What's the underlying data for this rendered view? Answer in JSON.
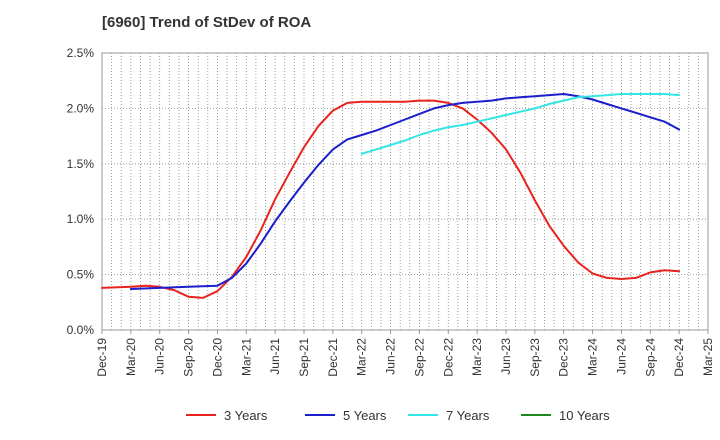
{
  "chart_data": {
    "type": "line",
    "title": "[6960]  Trend of StDev of ROA",
    "xlabel": "",
    "ylabel": "",
    "ylim": [
      0,
      2.5
    ],
    "y_ticks": [
      "0.0%",
      "0.5%",
      "1.0%",
      "1.5%",
      "2.0%",
      "2.5%"
    ],
    "y_tick_values": [
      0,
      0.5,
      1.0,
      1.5,
      2.0,
      2.5
    ],
    "x_ticks": [
      "Dec-19",
      "Mar-20",
      "Jun-20",
      "Sep-20",
      "Dec-20",
      "Mar-21",
      "Jun-21",
      "Sep-21",
      "Dec-21",
      "Mar-22",
      "Jun-22",
      "Sep-22",
      "Dec-22",
      "Mar-23",
      "Jun-23",
      "Sep-23",
      "Dec-23",
      "Mar-24",
      "Jun-24",
      "Sep-24",
      "Dec-24",
      "Mar-25"
    ],
    "grid": true,
    "legend_position": "bottom",
    "series": [
      {
        "name": "3 Years",
        "color": "#e8231e",
        "points": [
          [
            0,
            0.38
          ],
          [
            1,
            0.39
          ],
          [
            1.5,
            0.4
          ],
          [
            2,
            0.39
          ],
          [
            2.5,
            0.36
          ],
          [
            3,
            0.3
          ],
          [
            3.5,
            0.29
          ],
          [
            4,
            0.35
          ],
          [
            4.5,
            0.48
          ],
          [
            5,
            0.66
          ],
          [
            5.5,
            0.9
          ],
          [
            6,
            1.18
          ],
          [
            6.5,
            1.42
          ],
          [
            7,
            1.65
          ],
          [
            7.5,
            1.84
          ],
          [
            8,
            1.98
          ],
          [
            8.5,
            2.05
          ],
          [
            9,
            2.06
          ],
          [
            10,
            2.06
          ],
          [
            10.5,
            2.06
          ],
          [
            11,
            2.07
          ],
          [
            11.5,
            2.07
          ],
          [
            12,
            2.05
          ],
          [
            12.5,
            2.0
          ],
          [
            13,
            1.9
          ],
          [
            13.5,
            1.78
          ],
          [
            14,
            1.63
          ],
          [
            14.5,
            1.42
          ],
          [
            15,
            1.17
          ],
          [
            15.5,
            0.94
          ],
          [
            16,
            0.76
          ],
          [
            16.5,
            0.61
          ],
          [
            17,
            0.51
          ],
          [
            17.5,
            0.47
          ],
          [
            18,
            0.46
          ],
          [
            18.5,
            0.47
          ],
          [
            19,
            0.52
          ],
          [
            19.5,
            0.54
          ],
          [
            20,
            0.53
          ]
        ]
      },
      {
        "name": "5 Years",
        "color": "#1a1fcc",
        "points": [
          [
            1,
            0.37
          ],
          [
            2,
            0.38
          ],
          [
            3,
            0.39
          ],
          [
            4,
            0.4
          ],
          [
            4.5,
            0.47
          ],
          [
            5,
            0.6
          ],
          [
            5.5,
            0.78
          ],
          [
            6,
            0.98
          ],
          [
            6.5,
            1.16
          ],
          [
            7,
            1.33
          ],
          [
            7.5,
            1.49
          ],
          [
            8,
            1.63
          ],
          [
            8.5,
            1.72
          ],
          [
            9,
            1.76
          ],
          [
            9.5,
            1.8
          ],
          [
            10,
            1.85
          ],
          [
            10.5,
            1.9
          ],
          [
            11,
            1.95
          ],
          [
            11.5,
            2.0
          ],
          [
            12,
            2.03
          ],
          [
            12.5,
            2.05
          ],
          [
            13,
            2.06
          ],
          [
            13.5,
            2.07
          ],
          [
            14,
            2.09
          ],
          [
            14.5,
            2.1
          ],
          [
            15,
            2.11
          ],
          [
            15.5,
            2.12
          ],
          [
            16,
            2.13
          ],
          [
            16.5,
            2.11
          ],
          [
            17,
            2.08
          ],
          [
            17.5,
            2.04
          ],
          [
            18,
            2.0
          ],
          [
            18.5,
            1.96
          ],
          [
            19,
            1.92
          ],
          [
            19.5,
            1.88
          ],
          [
            20,
            1.81
          ]
        ]
      },
      {
        "name": "7 Years",
        "color": "#33e6e6",
        "points": [
          [
            9,
            1.59
          ],
          [
            9.5,
            1.63
          ],
          [
            10,
            1.67
          ],
          [
            10.5,
            1.71
          ],
          [
            11,
            1.76
          ],
          [
            11.5,
            1.8
          ],
          [
            12,
            1.83
          ],
          [
            12.5,
            1.85
          ],
          [
            13,
            1.88
          ],
          [
            13.5,
            1.91
          ],
          [
            14,
            1.94
          ],
          [
            14.5,
            1.97
          ],
          [
            15,
            2.0
          ],
          [
            15.5,
            2.04
          ],
          [
            16,
            2.07
          ],
          [
            16.5,
            2.1
          ],
          [
            17,
            2.11
          ],
          [
            17.5,
            2.12
          ],
          [
            18,
            2.13
          ],
          [
            18.5,
            2.13
          ],
          [
            19,
            2.13
          ],
          [
            19.5,
            2.13
          ],
          [
            20,
            2.12
          ]
        ]
      },
      {
        "name": "10 Years",
        "color": "#1e8a1e",
        "points": []
      }
    ]
  }
}
